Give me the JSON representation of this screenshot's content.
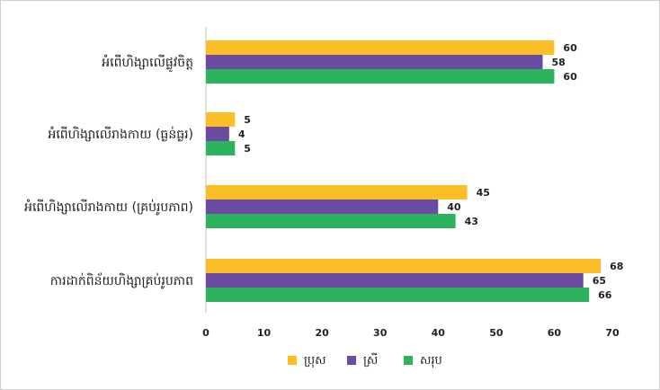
{
  "chart_data": {
    "type": "bar",
    "orientation": "horizontal",
    "categories": [
      "អំពើហិង្សាលើផ្លូវចិត្ត",
      "អំពើហិង្សាលើរាងកាយ (ធ្ងន់ធ្ងរ)",
      "អំពើហិង្សាលើរាងកាយ (គ្រប់រូបភាព)",
      "ការដាក់ពិន័យហិង្សាគ្រប់រូបភាព"
    ],
    "series": [
      {
        "name": "ប្រុស",
        "values": [
          60,
          5,
          45,
          68
        ],
        "color": "#FBBE27"
      },
      {
        "name": "ស្រី",
        "values": [
          58,
          4,
          40,
          65
        ],
        "color": "#6A4BA0"
      },
      {
        "name": "សរុប",
        "values": [
          60,
          5,
          43,
          66
        ],
        "color": "#2DB35D"
      }
    ],
    "xlim": [
      0,
      70
    ],
    "xticks": [
      0,
      10,
      20,
      30,
      40,
      50,
      60,
      70
    ],
    "grid": false,
    "legend_position": "bottom"
  }
}
